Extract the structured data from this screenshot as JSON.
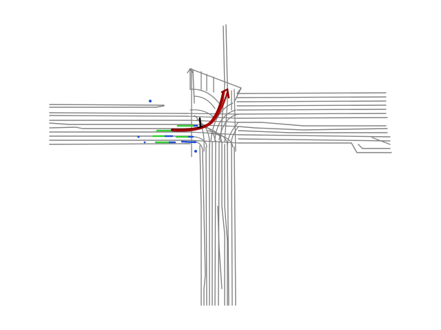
{
  "map": {
    "background": "#ffffff",
    "colors": {
      "lane": "#808080",
      "trajectory": "#8b0000",
      "trajectory_highlight": "#c00000",
      "agent_history": "#32cd32",
      "agent_current": "#0033cc",
      "ego": "#000000"
    },
    "legend": []
  }
}
